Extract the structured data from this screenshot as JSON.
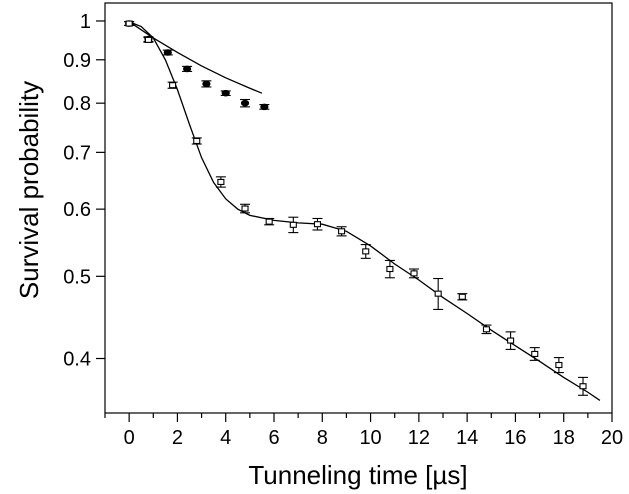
{
  "chart_data": {
    "type": "scatter",
    "title": "",
    "xlabel": "Tunneling time [µs]",
    "ylabel": "Survival probability",
    "xlim": [
      -1,
      20
    ],
    "ylim": [
      0.345,
      1.05
    ],
    "yscale": "log",
    "grid": false,
    "legend": "none",
    "x_ticks": [
      0,
      2,
      4,
      6,
      8,
      10,
      12,
      14,
      16,
      18,
      20
    ],
    "y_ticks": [
      0.4,
      0.5,
      0.6,
      0.7,
      0.8,
      0.9,
      1
    ],
    "y_tick_labels": [
      "0.4",
      "0.5",
      "0.6",
      "0.7",
      "0.8",
      "0.9",
      "1"
    ],
    "series": [
      {
        "marker": "filled-circle",
        "points": [
          {
            "x": 0,
            "y": 0.993,
            "err": 0.005
          },
          {
            "x": 0.8,
            "y": 0.952,
            "err": 0.006
          },
          {
            "x": 1.6,
            "y": 0.918,
            "err": 0.006
          },
          {
            "x": 2.4,
            "y": 0.878,
            "err": 0.006
          },
          {
            "x": 3.2,
            "y": 0.843,
            "err": 0.007
          },
          {
            "x": 4.0,
            "y": 0.822,
            "err": 0.005
          },
          {
            "x": 4.8,
            "y": 0.8,
            "err": 0.008
          },
          {
            "x": 5.6,
            "y": 0.792,
            "err": 0.005
          }
        ],
        "fit": [
          [
            0,
            0.998
          ],
          [
            1.0,
            0.955
          ],
          [
            2.0,
            0.918
          ],
          [
            3.0,
            0.885
          ],
          [
            4.0,
            0.857
          ],
          [
            5.0,
            0.833
          ],
          [
            5.5,
            0.822
          ]
        ]
      },
      {
        "marker": "open-square",
        "points": [
          {
            "x": 0,
            "y": 0.993,
            "err": 0.005
          },
          {
            "x": 0.8,
            "y": 0.95,
            "err": 0.006
          },
          {
            "x": 1.8,
            "y": 0.84,
            "err": 0.007
          },
          {
            "x": 2.8,
            "y": 0.722,
            "err": 0.006
          },
          {
            "x": 3.8,
            "y": 0.646,
            "err": 0.009
          },
          {
            "x": 4.8,
            "y": 0.601,
            "err": 0.007
          },
          {
            "x": 5.8,
            "y": 0.58,
            "err": 0.005
          },
          {
            "x": 6.8,
            "y": 0.575,
            "err": 0.012
          },
          {
            "x": 7.8,
            "y": 0.576,
            "err": 0.009
          },
          {
            "x": 8.8,
            "y": 0.565,
            "err": 0.007
          },
          {
            "x": 9.8,
            "y": 0.535,
            "err": 0.01
          },
          {
            "x": 10.8,
            "y": 0.51,
            "err": 0.012
          },
          {
            "x": 11.8,
            "y": 0.504,
            "err": 0.006
          },
          {
            "x": 12.8,
            "y": 0.477,
            "err": 0.02
          },
          {
            "x": 13.8,
            "y": 0.473,
            "err": 0.004
          },
          {
            "x": 14.8,
            "y": 0.433,
            "err": 0.005
          },
          {
            "x": 15.8,
            "y": 0.42,
            "err": 0.01
          },
          {
            "x": 16.8,
            "y": 0.405,
            "err": 0.007
          },
          {
            "x": 17.8,
            "y": 0.393,
            "err": 0.008
          },
          {
            "x": 18.8,
            "y": 0.371,
            "err": 0.009
          }
        ],
        "fit": [
          [
            0,
            0.998
          ],
          [
            0.5,
            0.985
          ],
          [
            1.0,
            0.955
          ],
          [
            1.5,
            0.9
          ],
          [
            2.0,
            0.83
          ],
          [
            2.5,
            0.755
          ],
          [
            3.0,
            0.69
          ],
          [
            3.5,
            0.645
          ],
          [
            4.0,
            0.617
          ],
          [
            4.5,
            0.6
          ],
          [
            5.0,
            0.59
          ],
          [
            6.0,
            0.582
          ],
          [
            7.0,
            0.578
          ],
          [
            8.0,
            0.576
          ],
          [
            9.0,
            0.565
          ],
          [
            10.0,
            0.543
          ],
          [
            11.0,
            0.517
          ],
          [
            12.0,
            0.495
          ],
          [
            13.0,
            0.472
          ],
          [
            14.0,
            0.452
          ],
          [
            15.0,
            0.432
          ],
          [
            16.0,
            0.414
          ],
          [
            17.0,
            0.397
          ],
          [
            18.0,
            0.38
          ],
          [
            19.0,
            0.365
          ],
          [
            19.5,
            0.357
          ]
        ]
      }
    ]
  }
}
